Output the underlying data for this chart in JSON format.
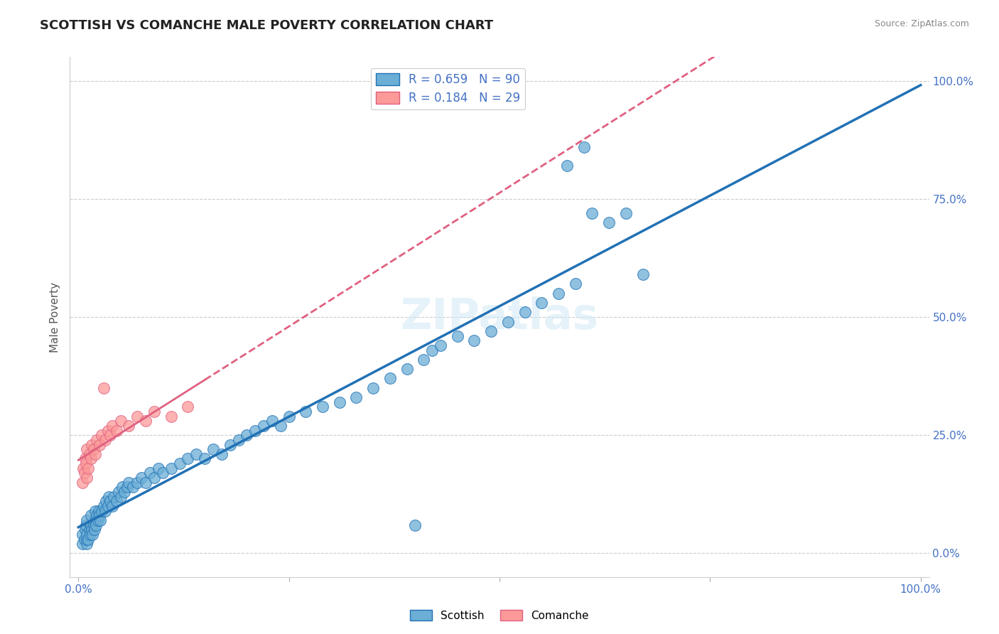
{
  "title": "SCOTTISH VS COMANCHE MALE POVERTY CORRELATION CHART",
  "source_text": "Source: ZipAtlas.com",
  "ylabel": "Male Poverty",
  "ytick_labels": [
    "0.0%",
    "25.0%",
    "50.0%",
    "75.0%",
    "100.0%"
  ],
  "ytick_values": [
    0.0,
    0.25,
    0.5,
    0.75,
    1.0
  ],
  "scottish_R": 0.659,
  "scottish_N": 90,
  "comanche_R": 0.184,
  "comanche_N": 29,
  "scottish_color": "#6baed6",
  "scottish_line_color": "#2171b5",
  "comanche_color": "#fb9a99",
  "comanche_line_color": "#e06080",
  "watermark": "ZIPatlas",
  "scottish_points": [
    [
      0.005,
      0.02
    ],
    [
      0.005,
      0.04
    ],
    [
      0.007,
      0.03
    ],
    [
      0.008,
      0.05
    ],
    [
      0.009,
      0.06
    ],
    [
      0.01,
      0.02
    ],
    [
      0.01,
      0.03
    ],
    [
      0.01,
      0.04
    ],
    [
      0.01,
      0.07
    ],
    [
      0.012,
      0.03
    ],
    [
      0.013,
      0.05
    ],
    [
      0.014,
      0.04
    ],
    [
      0.015,
      0.06
    ],
    [
      0.015,
      0.08
    ],
    [
      0.016,
      0.05
    ],
    [
      0.017,
      0.04
    ],
    [
      0.018,
      0.06
    ],
    [
      0.019,
      0.05
    ],
    [
      0.02,
      0.07
    ],
    [
      0.02,
      0.09
    ],
    [
      0.021,
      0.06
    ],
    [
      0.022,
      0.08
    ],
    [
      0.023,
      0.07
    ],
    [
      0.024,
      0.09
    ],
    [
      0.025,
      0.08
    ],
    [
      0.026,
      0.07
    ],
    [
      0.028,
      0.09
    ],
    [
      0.03,
      0.1
    ],
    [
      0.032,
      0.09
    ],
    [
      0.033,
      0.11
    ],
    [
      0.035,
      0.1
    ],
    [
      0.036,
      0.12
    ],
    [
      0.038,
      0.11
    ],
    [
      0.04,
      0.1
    ],
    [
      0.042,
      0.12
    ],
    [
      0.045,
      0.11
    ],
    [
      0.048,
      0.13
    ],
    [
      0.05,
      0.12
    ],
    [
      0.052,
      0.14
    ],
    [
      0.055,
      0.13
    ],
    [
      0.058,
      0.14
    ],
    [
      0.06,
      0.15
    ],
    [
      0.065,
      0.14
    ],
    [
      0.07,
      0.15
    ],
    [
      0.075,
      0.16
    ],
    [
      0.08,
      0.15
    ],
    [
      0.085,
      0.17
    ],
    [
      0.09,
      0.16
    ],
    [
      0.095,
      0.18
    ],
    [
      0.1,
      0.17
    ],
    [
      0.11,
      0.18
    ],
    [
      0.12,
      0.19
    ],
    [
      0.13,
      0.2
    ],
    [
      0.14,
      0.21
    ],
    [
      0.15,
      0.2
    ],
    [
      0.16,
      0.22
    ],
    [
      0.17,
      0.21
    ],
    [
      0.18,
      0.23
    ],
    [
      0.19,
      0.24
    ],
    [
      0.2,
      0.25
    ],
    [
      0.21,
      0.26
    ],
    [
      0.22,
      0.27
    ],
    [
      0.23,
      0.28
    ],
    [
      0.24,
      0.27
    ],
    [
      0.25,
      0.29
    ],
    [
      0.27,
      0.3
    ],
    [
      0.29,
      0.31
    ],
    [
      0.31,
      0.32
    ],
    [
      0.33,
      0.33
    ],
    [
      0.35,
      0.35
    ],
    [
      0.37,
      0.37
    ],
    [
      0.39,
      0.39
    ],
    [
      0.41,
      0.41
    ],
    [
      0.42,
      0.43
    ],
    [
      0.43,
      0.44
    ],
    [
      0.45,
      0.46
    ],
    [
      0.47,
      0.45
    ],
    [
      0.49,
      0.47
    ],
    [
      0.51,
      0.49
    ],
    [
      0.53,
      0.51
    ],
    [
      0.55,
      0.53
    ],
    [
      0.57,
      0.55
    ],
    [
      0.59,
      0.57
    ],
    [
      0.61,
      0.72
    ],
    [
      0.63,
      0.7
    ],
    [
      0.65,
      0.72
    ],
    [
      0.67,
      0.59
    ],
    [
      0.58,
      0.82
    ],
    [
      0.6,
      0.86
    ],
    [
      0.4,
      0.06
    ]
  ],
  "comanche_points": [
    [
      0.005,
      0.15
    ],
    [
      0.006,
      0.18
    ],
    [
      0.007,
      0.17
    ],
    [
      0.008,
      0.2
    ],
    [
      0.009,
      0.19
    ],
    [
      0.01,
      0.16
    ],
    [
      0.01,
      0.22
    ],
    [
      0.012,
      0.18
    ],
    [
      0.013,
      0.21
    ],
    [
      0.015,
      0.2
    ],
    [
      0.016,
      0.23
    ],
    [
      0.018,
      0.22
    ],
    [
      0.02,
      0.21
    ],
    [
      0.022,
      0.24
    ],
    [
      0.025,
      0.23
    ],
    [
      0.028,
      0.25
    ],
    [
      0.03,
      0.35
    ],
    [
      0.032,
      0.24
    ],
    [
      0.035,
      0.26
    ],
    [
      0.038,
      0.25
    ],
    [
      0.04,
      0.27
    ],
    [
      0.045,
      0.26
    ],
    [
      0.05,
      0.28
    ],
    [
      0.06,
      0.27
    ],
    [
      0.07,
      0.29
    ],
    [
      0.08,
      0.28
    ],
    [
      0.09,
      0.3
    ],
    [
      0.11,
      0.29
    ],
    [
      0.13,
      0.31
    ]
  ]
}
